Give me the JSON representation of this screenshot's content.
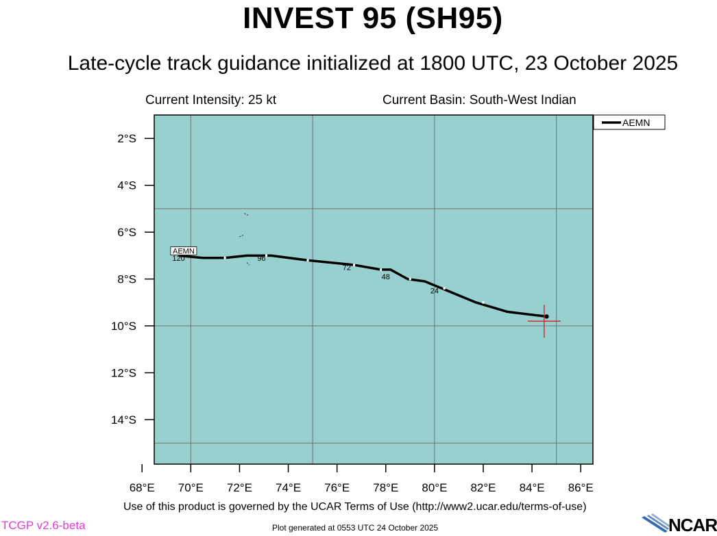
{
  "header": {
    "title": "INVEST 95 (SH95)",
    "subtitle": "Late-cycle track guidance initialized at 1800 UTC, 23 October 2025",
    "current_intensity": "Current Intensity: 25 kt",
    "current_basin": "Current Basin: South-West Indian"
  },
  "map": {
    "ocean_color": "#98cfcf",
    "grid_color": "#707070",
    "lon_range": [
      68.5,
      86.5
    ],
    "lat_range": [
      -15.9,
      -1.0
    ],
    "lat_ticks": [
      {
        "value": -2,
        "label": "2°S"
      },
      {
        "value": -4,
        "label": "4°S"
      },
      {
        "value": -6,
        "label": "6°S"
      },
      {
        "value": -8,
        "label": "8°S"
      },
      {
        "value": -10,
        "label": "10°S"
      },
      {
        "value": -12,
        "label": "12°S"
      },
      {
        "value": -14,
        "label": "14°S"
      }
    ],
    "lon_ticks": [
      {
        "value": 68,
        "label": "68°E"
      },
      {
        "value": 70,
        "label": "70°E"
      },
      {
        "value": 72,
        "label": "72°E"
      },
      {
        "value": 74,
        "label": "74°E"
      },
      {
        "value": 76,
        "label": "76°E"
      },
      {
        "value": 78,
        "label": "78°E"
      },
      {
        "value": 80,
        "label": "80°E"
      },
      {
        "value": 82,
        "label": "82°E"
      },
      {
        "value": 84,
        "label": "84°E"
      },
      {
        "value": 86,
        "label": "86°E"
      }
    ],
    "grid_lons": [
      70,
      75,
      80,
      85
    ],
    "grid_lats": [
      -5,
      -10,
      -15
    ],
    "current_position": {
      "lon": 84.5,
      "lat": -9.8,
      "color": "#d81e1e"
    }
  },
  "chart_data": {
    "type": "line",
    "title": "INVEST 95 (SH95)",
    "x_units": "longitude °E",
    "y_units": "latitude",
    "xlim": [
      68.5,
      86.5
    ],
    "ylim": [
      -15.9,
      -1.0
    ],
    "series": [
      {
        "name": "AEMN",
        "color": "#000000",
        "points": [
          {
            "lon": 84.6,
            "lat": -9.6
          },
          {
            "lon": 83.0,
            "lat": -9.4
          },
          {
            "lon": 81.7,
            "lat": -9.0
          },
          {
            "lon": 80.3,
            "lat": -8.4
          },
          {
            "lon": 79.6,
            "lat": -8.1
          },
          {
            "lon": 78.9,
            "lat": -8.0
          },
          {
            "lon": 78.2,
            "lat": -7.6
          },
          {
            "lon": 77.8,
            "lat": -7.6
          },
          {
            "lon": 76.7,
            "lat": -7.4
          },
          {
            "lon": 74.8,
            "lat": -7.2
          },
          {
            "lon": 73.3,
            "lat": -7.0
          },
          {
            "lon": 72.3,
            "lat": -7.0
          },
          {
            "lon": 71.4,
            "lat": -7.1
          },
          {
            "lon": 70.5,
            "lat": -7.1
          },
          {
            "lon": 69.5,
            "lat": -7.0
          }
        ],
        "white_marks": [
          {
            "lon": 82.0,
            "lat": -9.0
          },
          {
            "lon": 80.4,
            "lat": -8.4
          },
          {
            "lon": 79.0,
            "lat": -8.0
          },
          {
            "lon": 77.8,
            "lat": -7.6
          },
          {
            "lon": 76.7,
            "lat": -7.4
          },
          {
            "lon": 74.8,
            "lat": -7.2
          },
          {
            "lon": 73.1,
            "lat": -7.0
          },
          {
            "lon": 71.4,
            "lat": -7.1
          }
        ],
        "hour_labels": [
          {
            "lon": 80.0,
            "lat": -8.5,
            "text": "24"
          },
          {
            "lon": 78.0,
            "lat": -7.9,
            "text": "48"
          },
          {
            "lon": 76.4,
            "lat": -7.5,
            "text": "72"
          },
          {
            "lon": 72.9,
            "lat": -7.1,
            "text": "96"
          },
          {
            "lon": 69.5,
            "lat": -7.1,
            "text": "120"
          }
        ],
        "end_label": {
          "lon": 69.2,
          "lat": -6.8,
          "text": "AEMN"
        }
      }
    ],
    "legend": {
      "entries": [
        "AEMN"
      ],
      "placement": "top-right outside"
    }
  },
  "islands": [
    [
      [
        72.2,
        -5.2
      ],
      [
        72.4,
        -5.3
      ]
    ],
    [
      [
        72.0,
        -6.2
      ],
      [
        72.2,
        -6.1
      ]
    ],
    [
      [
        72.3,
        -7.3
      ],
      [
        72.4,
        -7.4
      ]
    ]
  ],
  "footer": {
    "terms": "Use of this product is governed by the UCAR Terms of Use (http://www2.ucar.edu/terms-of-use)",
    "version": "TCGP v2.6-beta",
    "generated": "Plot generated at 0553 UTC   24 October 2025",
    "logo_text": "NCAR"
  }
}
